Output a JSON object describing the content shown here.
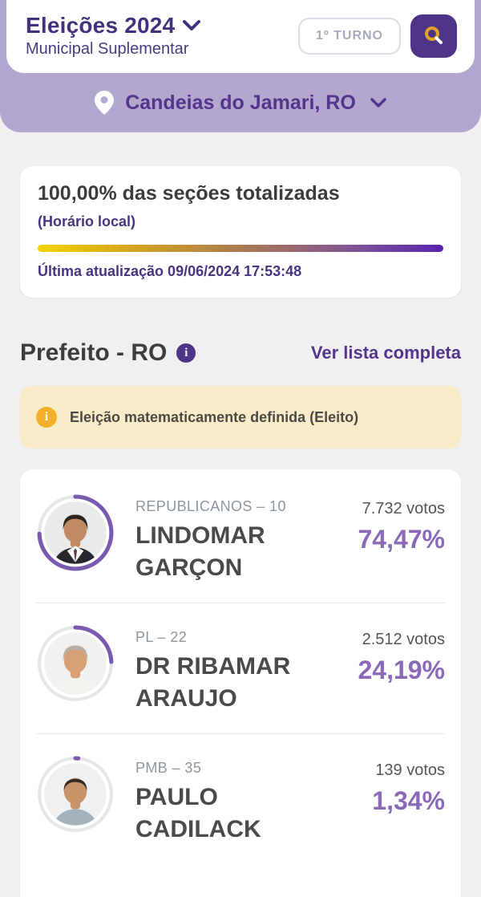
{
  "header": {
    "title": "Eleições 2024",
    "subtitle": "Municipal Suplementar",
    "round_badge": "1º TURNO",
    "icons": {
      "title_chevron": "chevron-down-icon",
      "search": "search-icon"
    }
  },
  "location": {
    "label": "Candeias do Jamari, RO",
    "icons": {
      "pin": "location-pin-icon",
      "chevron": "chevron-down-icon"
    }
  },
  "totalization": {
    "headline": "100,00% das seções totalizadas",
    "timezone_note": "(Horário local)",
    "last_update": "Última atualização 09/06/2024 17:53:48",
    "progress_percent": 100
  },
  "race": {
    "title": "Prefeito - RO",
    "info_icon": "info-icon",
    "see_full_list": "Ver lista completa",
    "status_banner": "Eleição matematicamente definida (Eleito)"
  },
  "candidates": [
    {
      "party": "REPUBLICANOS – 10",
      "name": "LINDOMAR GARÇON",
      "votes": "7.732 votos",
      "percent_label": "74,47%",
      "percent": 74.47,
      "avatar": {
        "bg": "#e9eaea",
        "skin": "#c08a62",
        "hair": "#2c241e",
        "hair_style": "full",
        "shirt": "#26262e",
        "collar": "#ffffff",
        "tie": "#5a3b46"
      }
    },
    {
      "party": "PL – 22",
      "name": "DR RIBAMAR ARAUJO",
      "votes": "2.512 votos",
      "percent_label": "24,19%",
      "percent": 24.19,
      "avatar": {
        "bg": "#f1f1ef",
        "skin": "#d7a177",
        "hair": "#b7b0a6",
        "hair_style": "full",
        "shirt": "#f3f3f0",
        "collar": "",
        "tie": ""
      }
    },
    {
      "party": "PMB – 35",
      "name": "PAULO CADILACK",
      "votes": "139 votos",
      "percent_label": "1,34%",
      "percent": 1.34,
      "avatar": {
        "bg": "#eef0f1",
        "skin": "#c69468",
        "hair": "#352b24",
        "hair_style": "balding",
        "shirt": "#a3b2bd",
        "collar": "",
        "tie": ""
      }
    }
  ],
  "colors": {
    "deep_purple": "#44307e",
    "accent_purple": "#8a6ab8",
    "ring_purple": "#7a5ab0",
    "lavender": "#b4a7cf",
    "page_bg": "#f1eff2",
    "banner_bg": "#fbecc9",
    "banner_icon": "#f2b02c",
    "search_btn": "#4d3486",
    "gradient_start": "#f4d303",
    "gradient_end": "#5a20ae"
  }
}
